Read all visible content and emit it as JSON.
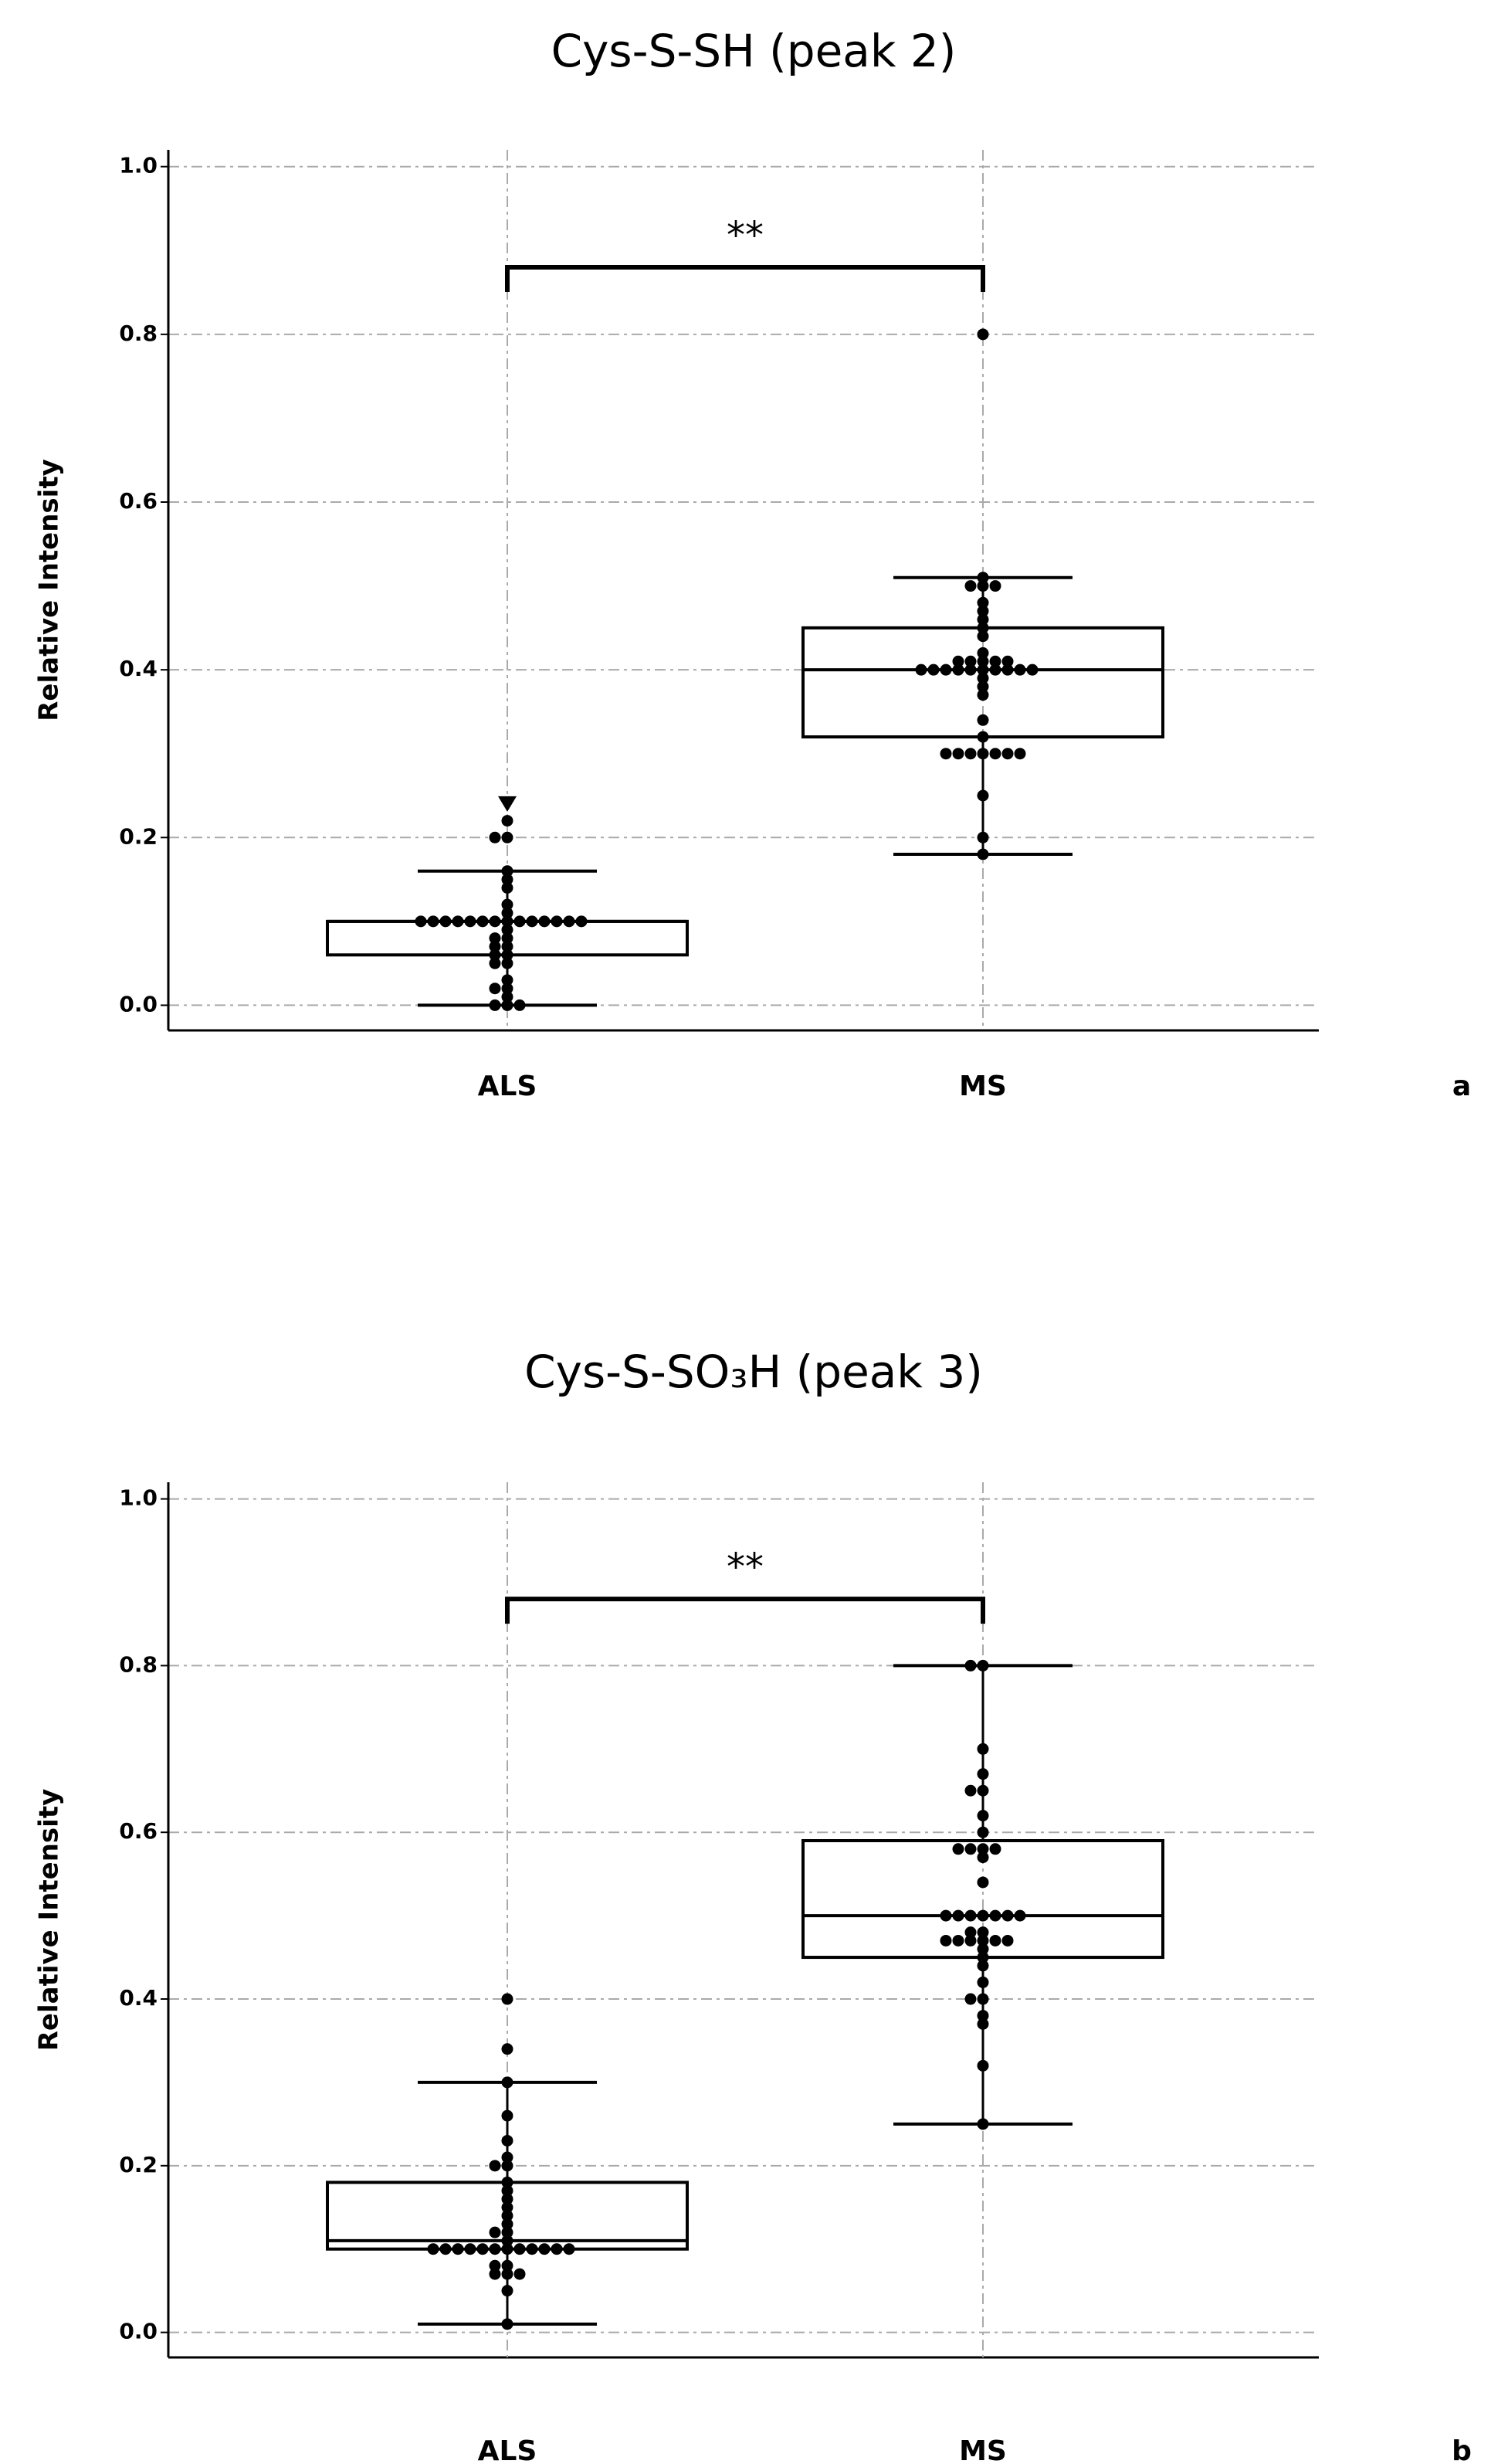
{
  "chart_data": [
    {
      "type": "box",
      "title": "Cys-S-SH (peak 2)",
      "panel_label": "a",
      "y_label": "Relative Intensity",
      "categories": [
        "ALS",
        "MS"
      ],
      "boxes": [
        {
          "whisker_low": 0,
          "q1": 0.06,
          "median": 0.1,
          "q3": 0.1,
          "whisker_high": 0.16,
          "points": [
            0,
            0,
            0,
            0.01,
            0.02,
            0.02,
            0.03,
            0.05,
            0.05,
            0.06,
            0.06,
            0.07,
            0.07,
            0.08,
            0.08,
            0.09,
            0.1,
            0.1,
            0.1,
            0.1,
            0.1,
            0.1,
            0.1,
            0.1,
            0.1,
            0.1,
            0.1,
            0.1,
            0.1,
            0.1,
            0.11,
            0.12,
            0.14,
            0.15,
            0.16,
            0.2,
            0.2,
            0.22
          ],
          "outliers": [
            {
              "value": 0.24,
              "marker": "triangle"
            }
          ]
        },
        {
          "whisker_low": 0.18,
          "q1": 0.32,
          "median": 0.4,
          "q3": 0.45,
          "whisker_high": 0.51,
          "points": [
            0.18,
            0.2,
            0.25,
            0.3,
            0.3,
            0.3,
            0.3,
            0.3,
            0.3,
            0.3,
            0.32,
            0.34,
            0.37,
            0.38,
            0.39,
            0.4,
            0.4,
            0.4,
            0.4,
            0.4,
            0.4,
            0.4,
            0.4,
            0.4,
            0.4,
            0.41,
            0.41,
            0.41,
            0.41,
            0.41,
            0.42,
            0.44,
            0.45,
            0.46,
            0.47,
            0.48,
            0.5,
            0.5,
            0.5,
            0.51
          ],
          "outliers": [
            {
              "value": 0.8,
              "marker": "circle"
            }
          ]
        }
      ],
      "significance": {
        "label": "**",
        "level": 0.88
      },
      "ylim": [
        -0.03,
        1.02
      ],
      "yticks": [
        {
          "value": 0,
          "label": "0.0"
        },
        0.2,
        0.4,
        0.6,
        0.8,
        {
          "value": 1,
          "label": "1.0"
        }
      ],
      "grid": true,
      "color": "#000000"
    },
    {
      "type": "box",
      "title": "Cys-S-SO₃H (peak 3)",
      "panel_label": "b",
      "y_label": "Relative Intensity",
      "categories": [
        "ALS",
        "MS"
      ],
      "boxes": [
        {
          "whisker_low": 0.01,
          "q1": 0.1,
          "median": 0.11,
          "q3": 0.18,
          "whisker_high": 0.3,
          "points": [
            0.01,
            0.05,
            0.07,
            0.07,
            0.07,
            0.08,
            0.08,
            0.1,
            0.1,
            0.1,
            0.1,
            0.1,
            0.1,
            0.1,
            0.1,
            0.1,
            0.1,
            0.1,
            0.1,
            0.11,
            0.12,
            0.12,
            0.13,
            0.14,
            0.15,
            0.16,
            0.17,
            0.18,
            0.2,
            0.2,
            0.21,
            0.23,
            0.26,
            0.3
          ],
          "outliers": [
            {
              "value": 0.34,
              "marker": "circle"
            },
            {
              "value": 0.4,
              "marker": "circle"
            }
          ]
        },
        {
          "whisker_low": 0.25,
          "q1": 0.45,
          "median": 0.5,
          "q3": 0.59,
          "whisker_high": 0.8,
          "points": [
            0.25,
            0.32,
            0.37,
            0.38,
            0.4,
            0.4,
            0.42,
            0.44,
            0.45,
            0.46,
            0.47,
            0.47,
            0.47,
            0.47,
            0.47,
            0.47,
            0.48,
            0.48,
            0.5,
            0.5,
            0.5,
            0.5,
            0.5,
            0.5,
            0.5,
            0.54,
            0.57,
            0.58,
            0.58,
            0.58,
            0.58,
            0.6,
            0.62,
            0.65,
            0.65,
            0.67,
            0.7,
            0.8,
            0.8
          ],
          "outliers": []
        }
      ],
      "significance": {
        "label": "**",
        "level": 0.88
      },
      "ylim": [
        -0.03,
        1.02
      ],
      "yticks": [
        {
          "value": 0,
          "label": "0.0"
        },
        0.2,
        0.4,
        0.6,
        0.8,
        {
          "value": 1,
          "label": "1.0"
        }
      ],
      "grid": true,
      "color": "#000000"
    }
  ]
}
